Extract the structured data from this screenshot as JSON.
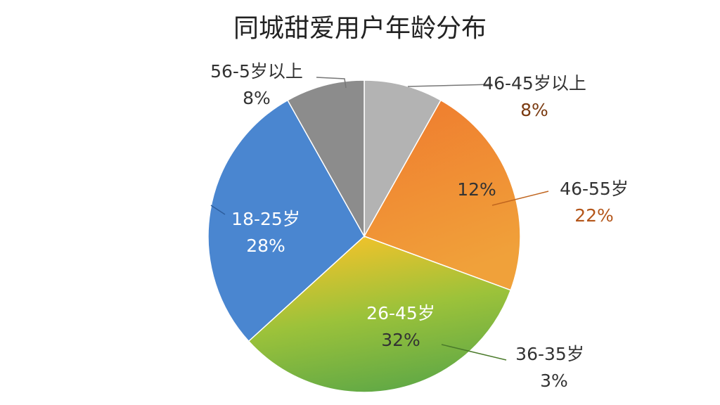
{
  "chart_data": {
    "type": "pie",
    "title": "同城甜爱用户年龄分布",
    "categories": [
      "46-45岁以上",
      "46-55岁",
      "26-45岁",
      "18-25岁",
      "56-5岁以上"
    ],
    "values": [
      8,
      22,
      32,
      28,
      8
    ],
    "value_labels": [
      "8%",
      "22%",
      "32%",
      "28%",
      "8%"
    ],
    "colors": [
      "#b3b3b3",
      "#ed7d31",
      "#8fbc3a",
      "#4a86d0",
      "#8c8c8c"
    ],
    "annotations": [
      "12%",
      "36-35岁",
      "3%"
    ]
  }
}
